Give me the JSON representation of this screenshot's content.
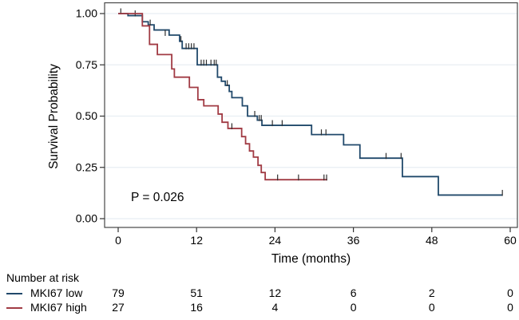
{
  "figure": {
    "background": "#ffffff",
    "panel_border_color": "#474747",
    "gridline_color": "#e8eef3",
    "axis_tick_color": "#333333",
    "censor_tick_color": "#2f2f2f",
    "text_color": "#000000"
  },
  "chart_data": {
    "type": "line",
    "variant": "kaplan-meier-step",
    "title": "",
    "xlabel": "Time (months)",
    "ylabel": "Survival Probability",
    "xlim": [
      0,
      60
    ],
    "ylim": [
      0,
      1
    ],
    "xticks": [
      0,
      12,
      24,
      36,
      48,
      60
    ],
    "yticks": [
      0,
      0.25,
      0.5,
      0.75,
      1
    ],
    "ytick_labels": [
      "0.00",
      "0.25",
      "0.50",
      "0.75",
      "1.00"
    ],
    "grid": "horizontal-only",
    "legend_position": "none",
    "annotation": {
      "text": "P = 0.026",
      "x_months": 2.1,
      "y_prob": 0.105
    },
    "series": [
      {
        "name": "MKI67 low",
        "color": "#21496b",
        "steps": [
          [
            0,
            1.0
          ],
          [
            1.5,
            0.99
          ],
          [
            3.7,
            0.96
          ],
          [
            4.6,
            0.945
          ],
          [
            5.5,
            0.92
          ],
          [
            7.8,
            0.895
          ],
          [
            9.4,
            0.865
          ],
          [
            9.8,
            0.83
          ],
          [
            12.1,
            0.75
          ],
          [
            15.2,
            0.69
          ],
          [
            15.8,
            0.67
          ],
          [
            16.4,
            0.65
          ],
          [
            17.0,
            0.62
          ],
          [
            17.4,
            0.59
          ],
          [
            19.0,
            0.55
          ],
          [
            19.8,
            0.5
          ],
          [
            21.3,
            0.48
          ],
          [
            22.0,
            0.455
          ],
          [
            29.6,
            0.41
          ],
          [
            34.5,
            0.36
          ],
          [
            37.0,
            0.295
          ],
          [
            43.5,
            0.205
          ],
          [
            49.0,
            0.115
          ]
        ],
        "end_time": 58.8,
        "censors": [
          [
            0.4,
            1.0
          ],
          [
            2.6,
            0.99
          ],
          [
            4.9,
            0.945
          ],
          [
            7.2,
            0.895
          ],
          [
            9.6,
            0.865
          ],
          [
            10.4,
            0.83
          ],
          [
            10.8,
            0.83
          ],
          [
            11.2,
            0.83
          ],
          [
            11.6,
            0.83
          ],
          [
            12.7,
            0.75
          ],
          [
            13.1,
            0.75
          ],
          [
            13.5,
            0.75
          ],
          [
            14.2,
            0.75
          ],
          [
            14.7,
            0.75
          ],
          [
            15.0,
            0.75
          ],
          [
            16.7,
            0.65
          ],
          [
            20.9,
            0.5
          ],
          [
            21.6,
            0.48
          ],
          [
            21.9,
            0.48
          ],
          [
            23.6,
            0.455
          ],
          [
            25.1,
            0.455
          ],
          [
            31.1,
            0.41
          ],
          [
            31.8,
            0.41
          ],
          [
            41.0,
            0.295
          ],
          [
            43.3,
            0.295
          ],
          [
            58.8,
            0.115
          ]
        ]
      },
      {
        "name": "MKI67 high",
        "color": "#a13b44",
        "steps": [
          [
            0,
            1.0
          ],
          [
            3.7,
            0.94
          ],
          [
            4.8,
            0.85
          ],
          [
            6.0,
            0.8
          ],
          [
            8.2,
            0.73
          ],
          [
            8.6,
            0.69
          ],
          [
            10.9,
            0.64
          ],
          [
            12.2,
            0.58
          ],
          [
            13.1,
            0.55
          ],
          [
            15.3,
            0.51
          ],
          [
            15.9,
            0.47
          ],
          [
            16.8,
            0.44
          ],
          [
            18.9,
            0.4
          ],
          [
            19.5,
            0.365
          ],
          [
            20.1,
            0.33
          ],
          [
            20.7,
            0.3
          ],
          [
            21.4,
            0.26
          ],
          [
            21.9,
            0.225
          ],
          [
            22.5,
            0.19
          ]
        ],
        "end_time": 32.0,
        "censors": [
          [
            17.4,
            0.44
          ],
          [
            24.4,
            0.19
          ],
          [
            27.6,
            0.19
          ],
          [
            31.5,
            0.19
          ],
          [
            31.9,
            0.19
          ]
        ]
      }
    ]
  },
  "risk_table": {
    "title": "Number at risk",
    "times": [
      0,
      12,
      24,
      36,
      48,
      60
    ],
    "rows": [
      {
        "label": "MKI67 low",
        "color": "#21496b",
        "counts": [
          79,
          51,
          12,
          6,
          2,
          0
        ]
      },
      {
        "label": "MKI67 high",
        "color": "#a13b44",
        "counts": [
          27,
          16,
          4,
          0,
          0,
          0
        ]
      }
    ]
  }
}
